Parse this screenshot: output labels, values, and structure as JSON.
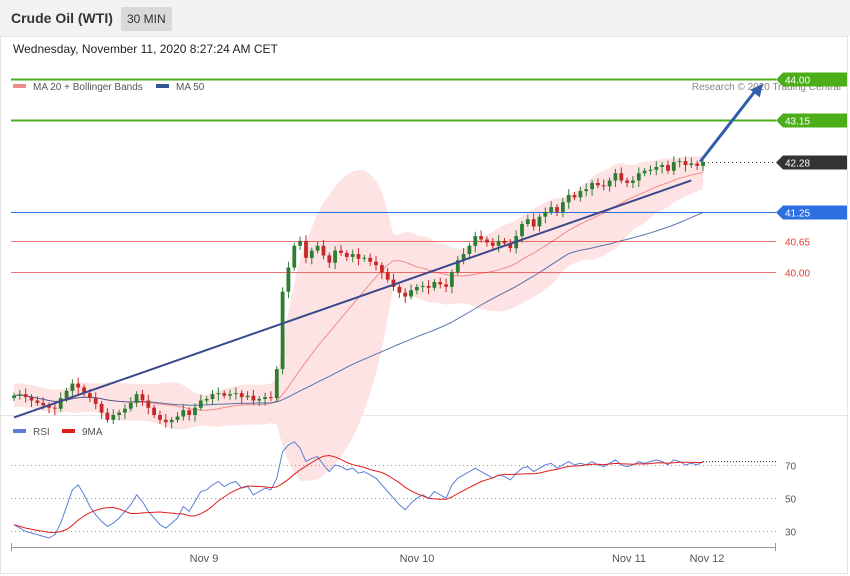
{
  "header": {
    "title": "Crude Oil (WTI)",
    "timeframe": "30 MIN"
  },
  "datetime": "Wednesday, November 11, 2020 8:27:24 AM CET",
  "credit": "Research © 2020 Trading Central",
  "colors": {
    "bull": "#2e7d32",
    "bear": "#c62828",
    "ma20": "#f28b8b",
    "band": "#fde0e0",
    "ma50": "#2f5597",
    "target": "#4caf1a",
    "pivot": "#2b6fe0",
    "support": "#e53935",
    "last": "#333333",
    "rsi": "#5b7fd6",
    "rsi_ma": "#e01e1e"
  },
  "chart_data": [
    {
      "type": "candlestick",
      "legend": [
        {
          "label": "MA 20 + Bollinger Bands",
          "color": "#f28b8b"
        },
        {
          "label": "MA 50",
          "color": "#2f5597"
        }
      ],
      "x_ticks": [
        "Nov 9",
        "Nov 10",
        "Nov 11",
        "Nov 12"
      ],
      "ylim": [
        37.05,
        44.35
      ],
      "levels": [
        {
          "value": 44.0,
          "label": "44.00",
          "kind": "target"
        },
        {
          "value": 43.15,
          "label": "43.15",
          "kind": "target"
        },
        {
          "value": 42.28,
          "label": "42.28",
          "kind": "last"
        },
        {
          "value": 41.25,
          "label": "41.25",
          "kind": "pivot"
        },
        {
          "value": 40.65,
          "label": "40.65",
          "kind": "support"
        },
        {
          "value": 40.0,
          "label": "40.00",
          "kind": "support"
        }
      ],
      "trendline": [
        [
          0.0,
          37.0
        ],
        [
          0.983,
          41.9
        ]
      ],
      "projection": [
        [
          0.996,
          42.29
        ],
        [
          1.087,
          43.9
        ]
      ],
      "closes": [
        37.45,
        37.48,
        37.42,
        37.35,
        37.3,
        37.25,
        37.2,
        37.18,
        37.4,
        37.55,
        37.7,
        37.62,
        37.5,
        37.4,
        37.28,
        37.1,
        36.95,
        37.05,
        37.1,
        37.18,
        37.3,
        37.48,
        37.35,
        37.2,
        37.05,
        36.95,
        36.9,
        36.95,
        37.02,
        37.15,
        37.05,
        37.2,
        37.35,
        37.38,
        37.48,
        37.5,
        37.45,
        37.48,
        37.5,
        37.42,
        37.45,
        37.35,
        37.38,
        37.42,
        37.4,
        38.0,
        39.6,
        40.1,
        40.55,
        40.65,
        40.3,
        40.45,
        40.55,
        40.35,
        40.2,
        40.45,
        40.4,
        40.32,
        40.38,
        40.28,
        40.3,
        40.22,
        40.15,
        40.0,
        39.85,
        39.7,
        39.58,
        39.5,
        39.63,
        39.7,
        39.72,
        39.68,
        39.8,
        39.75,
        39.7,
        40.0,
        40.25,
        40.38,
        40.55,
        40.75,
        40.68,
        40.62,
        40.55,
        40.65,
        40.6,
        40.5,
        40.75,
        41.0,
        41.1,
        40.95,
        41.15,
        41.25,
        41.35,
        41.25,
        41.45,
        41.6,
        41.55,
        41.68,
        41.72,
        41.85,
        41.8,
        41.78,
        41.9,
        42.05,
        41.9,
        41.85,
        41.9,
        42.05,
        42.1,
        42.12,
        42.18,
        42.22,
        42.1,
        42.28,
        42.3,
        42.22,
        42.25,
        42.2,
        42.28
      ],
      "rsi": {
        "legend": [
          {
            "label": "RSI",
            "color": "#5b7fd6"
          },
          {
            "label": "9MA",
            "color": "#e01e1e"
          }
        ],
        "ylim": [
          20,
          85
        ],
        "levels": [
          70,
          50,
          30
        ],
        "tick_labels": [
          "70",
          "50",
          "30"
        ],
        "rsi_values": [
          34,
          32,
          30,
          29,
          28,
          27,
          26,
          28,
          35,
          45,
          55,
          58,
          52,
          45,
          40,
          36,
          33,
          35,
          38,
          42,
          46,
          52,
          48,
          42,
          38,
          34,
          32,
          35,
          38,
          45,
          42,
          48,
          54,
          55,
          58,
          60,
          57,
          59,
          60,
          56,
          57,
          52,
          54,
          56,
          55,
          62,
          78,
          82,
          84,
          80,
          72,
          74,
          75,
          70,
          66,
          70,
          69,
          67,
          68,
          65,
          66,
          64,
          62,
          58,
          54,
          50,
          46,
          43,
          47,
          50,
          52,
          50,
          54,
          52,
          50,
          58,
          62,
          64,
          66,
          68,
          66,
          64,
          62,
          64,
          63,
          61,
          65,
          68,
          69,
          66,
          68,
          70,
          71,
          68,
          70,
          72,
          70,
          71,
          70,
          72,
          70,
          69,
          71,
          73,
          70,
          69,
          70,
          72,
          71,
          72,
          73,
          72,
          70,
          73,
          72,
          70,
          71,
          70,
          72
        ]
      }
    }
  ]
}
